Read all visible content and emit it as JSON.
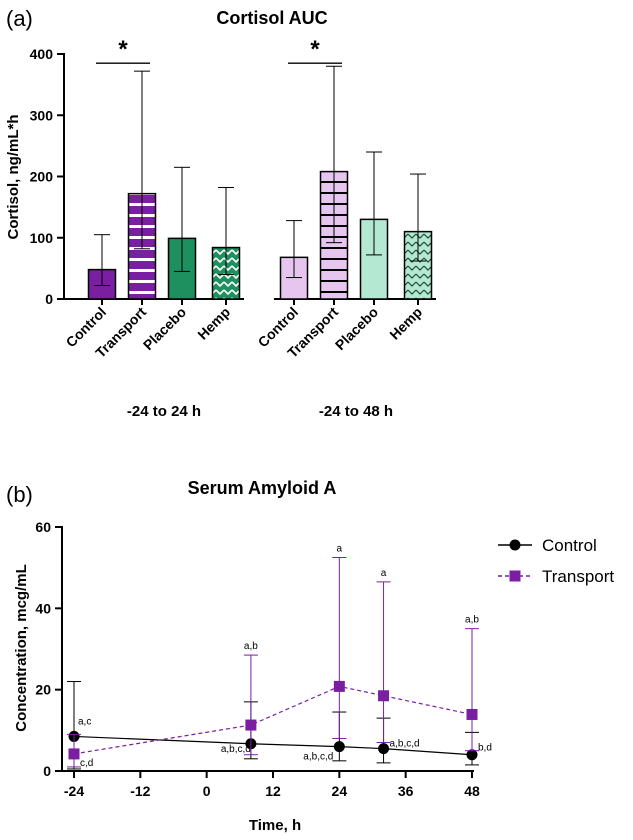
{
  "chart_data": [
    {
      "panel": "(a)",
      "type": "bar",
      "title": "Cortisol AUC",
      "ylabel": "Cortisol, ng/mL*h",
      "ylim": [
        0,
        400
      ],
      "yticks": [
        "0",
        "100",
        "200",
        "300",
        "400"
      ],
      "groups": [
        {
          "label": "-24 to 24 h",
          "bars": [
            {
              "category": "Control",
              "value": 48,
              "err_low": 22,
              "err_high": 105,
              "color": "#7b1fa2",
              "pattern": "solid"
            },
            {
              "category": "Transport",
              "value": 172,
              "err_low": 82,
              "err_high": 372,
              "color": "#7b1fa2",
              "pattern": "horizontal-stripes"
            },
            {
              "category": "Placebo",
              "value": 99,
              "err_low": 45,
              "err_high": 215,
              "color": "#1e8f5e",
              "pattern": "solid"
            },
            {
              "category": "Hemp",
              "value": 84,
              "err_low": 40,
              "err_high": 182,
              "color": "#1e8f5e",
              "pattern": "chevron"
            }
          ]
        },
        {
          "label": "-24 to 48 h",
          "bars": [
            {
              "category": "Control",
              "value": 68,
              "err_low": 35,
              "err_high": 128,
              "color": "#e6c6ef",
              "pattern": "solid"
            },
            {
              "category": "Transport",
              "value": 208,
              "err_low": 92,
              "err_high": 380,
              "color": "#e6c6ef",
              "pattern": "horizontal-stripes"
            },
            {
              "category": "Placebo",
              "value": 130,
              "err_low": 72,
              "err_high": 240,
              "color": "#b5e8d2",
              "pattern": "solid"
            },
            {
              "category": "Hemp",
              "value": 110,
              "err_low": 62,
              "err_high": 204,
              "color": "#b5e8d2",
              "pattern": "chevron"
            }
          ]
        }
      ],
      "significance": [
        {
          "group": 0,
          "from": "Control",
          "to": "Transport",
          "y": 385,
          "label": "*"
        },
        {
          "group": 1,
          "from": "Control",
          "to": "Transport",
          "y": 385,
          "label": "*"
        }
      ]
    },
    {
      "panel": "(b)",
      "type": "line",
      "title": "Serum Amyloid A",
      "xlabel": "Time, h",
      "ylabel": "Concentration, mcg/mL",
      "xlim": [
        -24,
        48
      ],
      "ylim": [
        0,
        60
      ],
      "xticks": [
        "-24",
        "-12",
        "0",
        "12",
        "24",
        "36",
        "48"
      ],
      "yticks": [
        "0",
        "20",
        "40",
        "60"
      ],
      "series": [
        {
          "name": "Control",
          "marker": "circle",
          "color": "#000000",
          "line": "solid",
          "points": [
            {
              "x": -24,
              "y": 8.5,
              "err_low": 0.5,
              "err_high": 22,
              "label": "a,c"
            },
            {
              "x": 8,
              "y": 6.7,
              "err_low": 3,
              "err_high": 17,
              "label": "a,b,c,d"
            },
            {
              "x": 24,
              "y": 6.0,
              "err_low": 2.5,
              "err_high": 14.5,
              "label": "a,b,c,d"
            },
            {
              "x": 32,
              "y": 5.5,
              "err_low": 2,
              "err_high": 13,
              "label": "a,b,c,d"
            },
            {
              "x": 48,
              "y": 4.0,
              "err_low": 1.5,
              "err_high": 9.5,
              "label": "b,d"
            }
          ]
        },
        {
          "name": "Transport",
          "marker": "square",
          "color": "#7b1fa2",
          "line": "dashed",
          "points": [
            {
              "x": -24,
              "y": 4.2,
              "err_low": 1,
              "err_high": 9,
              "label": "c,d"
            },
            {
              "x": 8,
              "y": 11.3,
              "err_low": 4,
              "err_high": 28.5,
              "label": "a,b"
            },
            {
              "x": 24,
              "y": 20.8,
              "err_low": 8,
              "err_high": 52.5,
              "label": "a"
            },
            {
              "x": 32,
              "y": 18.5,
              "err_low": 7,
              "err_high": 46.5,
              "label": "a"
            },
            {
              "x": 48,
              "y": 13.9,
              "err_low": 5,
              "err_high": 35,
              "label": "a,b"
            }
          ]
        }
      ],
      "legend": "right"
    }
  ]
}
